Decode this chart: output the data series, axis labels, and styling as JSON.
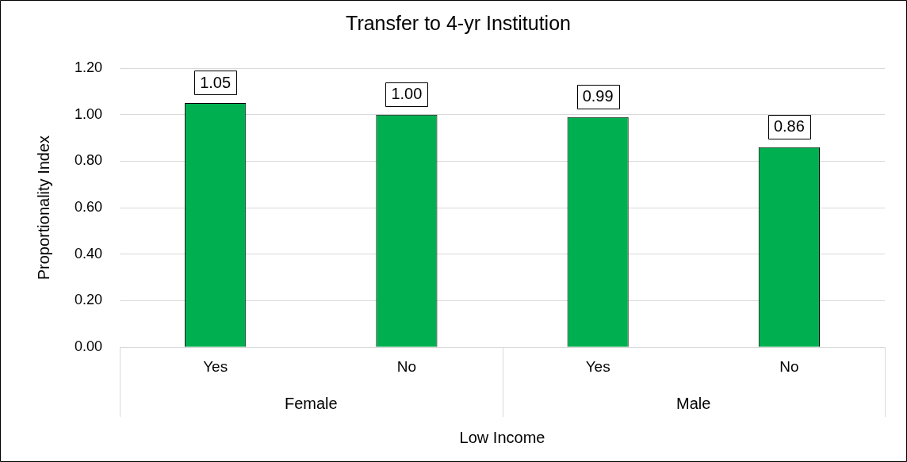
{
  "chart_data": {
    "type": "bar",
    "title": "Transfer to 4-yr Institution",
    "xlabel": "Low Income",
    "ylabel": "Proportionality Index",
    "categories": [
      "Yes",
      "No",
      "Yes",
      "No"
    ],
    "values": [
      1.05,
      1.0,
      0.99,
      0.86
    ],
    "color": "#00b050",
    "ylim": [
      0,
      1.2
    ],
    "yticks": [
      {
        "value": 0,
        "label": "0.00"
      },
      {
        "value": 0.2,
        "label": "0.20"
      },
      {
        "value": 0.4,
        "label": "0.40"
      },
      {
        "value": 0.6,
        "label": "0.60"
      },
      {
        "value": 0.8,
        "label": "0.80"
      },
      {
        "value": 1.0,
        "label": "1.00"
      },
      {
        "value": 1.2,
        "label": "1.20"
      }
    ],
    "value_labels": [
      "1.05",
      "1.00",
      "0.99",
      "0.86"
    ],
    "annotations": [
      "Female",
      "Male"
    ],
    "grid": "y",
    "legend": false
  }
}
